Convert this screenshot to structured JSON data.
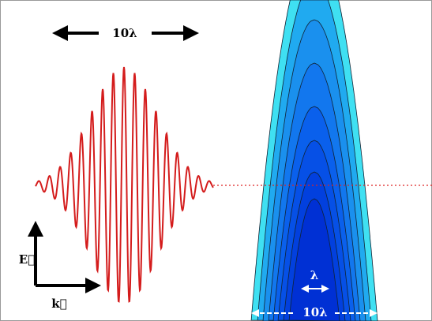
{
  "labels": {
    "top_width": "10λ",
    "e_field": "E⃗",
    "k_vector": "k⃗",
    "wavelength": "λ",
    "beam_width": "10λ"
  }
}
